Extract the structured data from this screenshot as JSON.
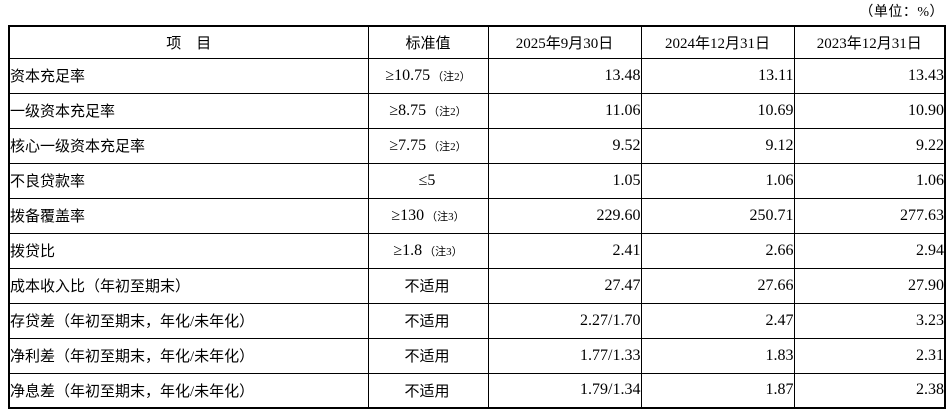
{
  "unit_label": "（单位：%）",
  "table": {
    "headers": {
      "item": "项　目",
      "standard": "标准值",
      "col2025": "2025年9月30日",
      "col2024": "2024年12月31日",
      "col2023": "2023年12月31日"
    },
    "rows": [
      {
        "item": "资本充足率",
        "standard": "≥10.75",
        "note": "（注2）",
        "v2025": "13.48",
        "v2024": "13.11",
        "v2023": "13.43"
      },
      {
        "item": "一级资本充足率",
        "standard": "≥8.75",
        "note": "（注2）",
        "v2025": "11.06",
        "v2024": "10.69",
        "v2023": "10.90"
      },
      {
        "item": "核心一级资本充足率",
        "standard": "≥7.75",
        "note": "（注2）",
        "v2025": "9.52",
        "v2024": "9.12",
        "v2023": "9.22"
      },
      {
        "item": "不良贷款率",
        "standard": "≤5",
        "note": "",
        "v2025": "1.05",
        "v2024": "1.06",
        "v2023": "1.06"
      },
      {
        "item": "拨备覆盖率",
        "standard": "≥130",
        "note": "（注3）",
        "v2025": "229.60",
        "v2024": "250.71",
        "v2023": "277.63"
      },
      {
        "item": "拨贷比",
        "standard": "≥1.8",
        "note": "（注3）",
        "v2025": "2.41",
        "v2024": "2.66",
        "v2023": "2.94"
      },
      {
        "item": "成本收入比（年初至期末）",
        "standard": "不适用",
        "note": "",
        "v2025": "27.47",
        "v2024": "27.66",
        "v2023": "27.90"
      },
      {
        "item": "存贷差（年初至期末，年化/未年化）",
        "standard": "不适用",
        "note": "",
        "v2025": "2.27/1.70",
        "v2024": "2.47",
        "v2023": "3.23"
      },
      {
        "item": "净利差（年初至期末，年化/未年化）",
        "standard": "不适用",
        "note": "",
        "v2025": "1.77/1.33",
        "v2024": "1.83",
        "v2023": "2.31"
      },
      {
        "item": "净息差（年初至期末，年化/未年化）",
        "standard": "不适用",
        "note": "",
        "v2025": "1.79/1.34",
        "v2024": "1.87",
        "v2023": "2.38"
      }
    ]
  }
}
